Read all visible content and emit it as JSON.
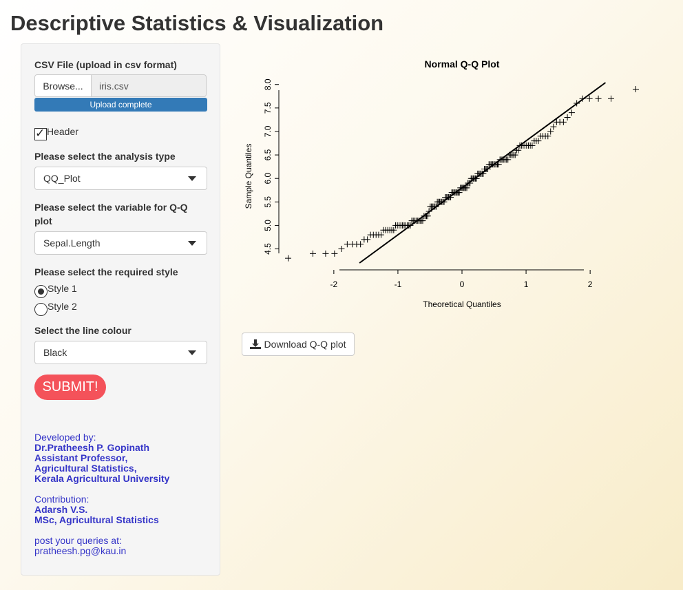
{
  "title": "Descriptive Statistics & Visualization",
  "sidebar": {
    "file_label": "CSV File (upload in csv format)",
    "browse_label": "Browse...",
    "file_name": "iris.csv",
    "upload_status": "Upload complete",
    "upload_progress": 1.0,
    "header_label": "Header",
    "header_checked": true,
    "analysis_label": "Please select the analysis type",
    "analysis_value": "QQ_Plot",
    "variable_label_line1": "Please select the variable for Q-Q",
    "variable_label_line2": "plot",
    "variable_value": "Sepal.Length",
    "style_label": "Please select the required style",
    "styles": [
      "Style 1",
      "Style 2"
    ],
    "selected_style": "Style 1",
    "colour_label": "Select the line colour",
    "colour_value": "Black",
    "submit_label": "SUBMIT!",
    "credits": {
      "dev_heading": "Developed by:",
      "dev_name": "Dr.Pratheesh P. Gopinath",
      "dev_role": "Assistant Professor,",
      "dev_dept": "Agricultural Statistics,",
      "dev_org": "Kerala Agricultural University",
      "contrib_heading": "Contribution:",
      "contrib_name": "Adarsh V.S.",
      "contrib_role": "MSc, Agricultural Statistics",
      "query_heading": "post your queries at:",
      "query_email": "pratheesh.pg@kau.in"
    }
  },
  "download_label": "Download Q-Q plot",
  "colors": {
    "submit": "#f4525a",
    "progress": "#337ab7",
    "credits": "#3535c8",
    "line": "#000000"
  },
  "chart_data": {
    "type": "scatter",
    "title": "Normal Q-Q Plot",
    "xlabel": "Theoretical Quantiles",
    "ylabel": "Sample Quantiles",
    "xticks": [
      "-2",
      "-1",
      "0",
      "1",
      "2"
    ],
    "yticks": [
      "4.5",
      "5.0",
      "5.5",
      "6.0",
      "6.5",
      "7.0",
      "7.5",
      "8.0"
    ],
    "xlim": [
      -2.74,
      2.74
    ],
    "ylim": [
      4.2,
      8.04
    ],
    "marker": "+",
    "reference_line": {
      "intercept": 5.8,
      "slope": 1.0
    },
    "samples": [
      4.3,
      4.4,
      4.4,
      4.4,
      4.5,
      4.6,
      4.6,
      4.6,
      4.6,
      4.7,
      4.7,
      4.8,
      4.8,
      4.8,
      4.8,
      4.8,
      4.9,
      4.9,
      4.9,
      4.9,
      4.9,
      4.9,
      5.0,
      5.0,
      5.0,
      5.0,
      5.0,
      5.0,
      5.0,
      5.0,
      5.0,
      5.0,
      5.1,
      5.1,
      5.1,
      5.1,
      5.1,
      5.1,
      5.1,
      5.1,
      5.1,
      5.2,
      5.2,
      5.2,
      5.2,
      5.3,
      5.4,
      5.4,
      5.4,
      5.4,
      5.4,
      5.4,
      5.5,
      5.5,
      5.5,
      5.5,
      5.5,
      5.5,
      5.5,
      5.6,
      5.6,
      5.6,
      5.6,
      5.6,
      5.6,
      5.7,
      5.7,
      5.7,
      5.7,
      5.7,
      5.7,
      5.7,
      5.7,
      5.8,
      5.8,
      5.8,
      5.8,
      5.8,
      5.8,
      5.8,
      5.9,
      5.9,
      5.9,
      6.0,
      6.0,
      6.0,
      6.0,
      6.0,
      6.0,
      6.1,
      6.1,
      6.1,
      6.1,
      6.1,
      6.1,
      6.2,
      6.2,
      6.2,
      6.2,
      6.3,
      6.3,
      6.3,
      6.3,
      6.3,
      6.3,
      6.3,
      6.3,
      6.3,
      6.4,
      6.4,
      6.4,
      6.4,
      6.4,
      6.4,
      6.4,
      6.5,
      6.5,
      6.5,
      6.5,
      6.5,
      6.6,
      6.6,
      6.7,
      6.7,
      6.7,
      6.7,
      6.7,
      6.7,
      6.7,
      6.7,
      6.8,
      6.8,
      6.8,
      6.9,
      6.9,
      6.9,
      6.9,
      7.0,
      7.1,
      7.2,
      7.2,
      7.2,
      7.3,
      7.4,
      7.6,
      7.7,
      7.7,
      7.7,
      7.7,
      7.9
    ]
  }
}
